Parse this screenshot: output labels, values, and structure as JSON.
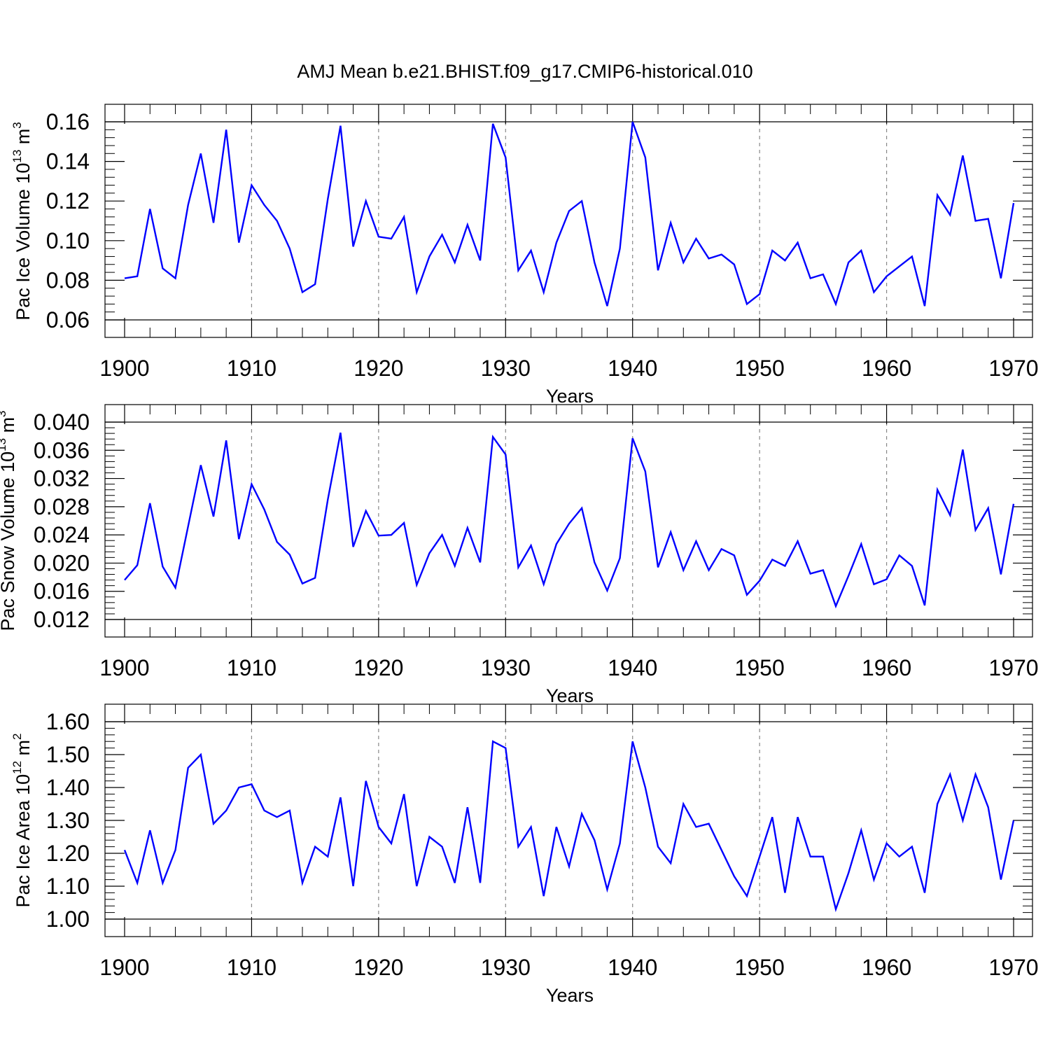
{
  "title": "AMJ Mean b.e21.BHIST.f09_g17.CMIP6-historical.010",
  "colors": {
    "line": "#0000ff",
    "axis": "#000000",
    "grid": "#888888"
  },
  "chart_data": [
    {
      "type": "line",
      "name": "pac-ice-volume",
      "xlabel": "Years",
      "ylabel_main": "Pac Ice Volume 10",
      "ylabel_exp": "13",
      "ylabel_unit": " m",
      "ylabel_unit_exp": "3",
      "xlim": [
        1900,
        1970
      ],
      "ylim": [
        0.06,
        0.16
      ],
      "xticks": [
        1900,
        1910,
        1920,
        1930,
        1940,
        1950,
        1960,
        1970
      ],
      "yticks": [
        0.06,
        0.08,
        0.1,
        0.12,
        0.14,
        0.16
      ],
      "ytick_labels": [
        "0.06",
        "0.08",
        "0.10",
        "0.12",
        "0.14",
        "0.16"
      ],
      "grid": "x dashed",
      "series": [
        {
          "name": "Pac Ice Volume",
          "x_start": 1900,
          "values": [
            0.081,
            0.082,
            0.116,
            0.086,
            0.081,
            0.118,
            0.144,
            0.109,
            0.156,
            0.099,
            0.128,
            0.118,
            0.11,
            0.096,
            0.074,
            0.078,
            0.121,
            0.158,
            0.097,
            0.12,
            0.102,
            0.101,
            0.112,
            0.074,
            0.092,
            0.103,
            0.089,
            0.108,
            0.09,
            0.159,
            0.142,
            0.085,
            0.095,
            0.074,
            0.099,
            0.115,
            0.12,
            0.089,
            0.067,
            0.096,
            0.16,
            0.142,
            0.085,
            0.109,
            0.089,
            0.101,
            0.091,
            0.093,
            0.088,
            0.068,
            0.073,
            0.095,
            0.09,
            0.099,
            0.081,
            0.083,
            0.068,
            0.089,
            0.095,
            0.074,
            0.082,
            0.087,
            0.092,
            0.067,
            0.123,
            0.113,
            0.143,
            0.11,
            0.111,
            0.081,
            0.119
          ]
        }
      ]
    },
    {
      "type": "line",
      "name": "pac-snow-volume",
      "xlabel": "Years",
      "ylabel_main": "Pac Snow Volume 10",
      "ylabel_exp": "13",
      "ylabel_unit": " m",
      "ylabel_unit_exp": "3",
      "xlim": [
        1900,
        1970
      ],
      "ylim": [
        0.012,
        0.04
      ],
      "xticks": [
        1900,
        1910,
        1920,
        1930,
        1940,
        1950,
        1960,
        1970
      ],
      "yticks": [
        0.012,
        0.016,
        0.02,
        0.024,
        0.028,
        0.032,
        0.036,
        0.04
      ],
      "ytick_labels": [
        "0.012",
        "0.016",
        "0.020",
        "0.024",
        "0.028",
        "0.032",
        "0.036",
        "0.040"
      ],
      "grid": "x dashed",
      "series": [
        {
          "name": "Pac Snow Volume",
          "x_start": 1900,
          "values": [
            0.0176,
            0.0197,
            0.0285,
            0.0195,
            0.0165,
            0.0252,
            0.0339,
            0.0266,
            0.0374,
            0.0234,
            0.0312,
            0.0276,
            0.023,
            0.0212,
            0.0171,
            0.0179,
            0.029,
            0.0385,
            0.0223,
            0.0274,
            0.0239,
            0.024,
            0.0257,
            0.0169,
            0.0214,
            0.024,
            0.0196,
            0.025,
            0.0201,
            0.0379,
            0.0354,
            0.0194,
            0.0225,
            0.017,
            0.0227,
            0.0256,
            0.0278,
            0.0201,
            0.0161,
            0.0207,
            0.0377,
            0.033,
            0.0194,
            0.0244,
            0.019,
            0.0231,
            0.019,
            0.022,
            0.0211,
            0.0155,
            0.0175,
            0.0205,
            0.0196,
            0.0231,
            0.0185,
            0.019,
            0.0139,
            0.0182,
            0.0227,
            0.017,
            0.0177,
            0.0211,
            0.0196,
            0.014,
            0.0304,
            0.0268,
            0.0361,
            0.0247,
            0.0278,
            0.0184,
            0.0284
          ]
        }
      ]
    },
    {
      "type": "line",
      "name": "pac-ice-area",
      "xlabel": "Years",
      "ylabel_main": "Pac Ice Area 10",
      "ylabel_exp": "12",
      "ylabel_unit": " m",
      "ylabel_unit_exp": "2",
      "xlim": [
        1900,
        1970
      ],
      "ylim": [
        1.0,
        1.6
      ],
      "xticks": [
        1900,
        1910,
        1920,
        1930,
        1940,
        1950,
        1960,
        1970
      ],
      "yticks": [
        1.0,
        1.1,
        1.2,
        1.3,
        1.4,
        1.5,
        1.6
      ],
      "ytick_labels": [
        "1.00",
        "1.10",
        "1.20",
        "1.30",
        "1.40",
        "1.50",
        "1.60"
      ],
      "grid": "x dashed",
      "series": [
        {
          "name": "Pac Ice Area",
          "x_start": 1900,
          "values": [
            1.21,
            1.11,
            1.27,
            1.11,
            1.21,
            1.46,
            1.5,
            1.29,
            1.33,
            1.4,
            1.41,
            1.33,
            1.31,
            1.33,
            1.11,
            1.22,
            1.19,
            1.37,
            1.1,
            1.42,
            1.28,
            1.23,
            1.38,
            1.1,
            1.25,
            1.22,
            1.11,
            1.34,
            1.11,
            1.54,
            1.52,
            1.22,
            1.28,
            1.07,
            1.28,
            1.16,
            1.32,
            1.24,
            1.09,
            1.23,
            1.54,
            1.4,
            1.22,
            1.17,
            1.35,
            1.28,
            1.29,
            1.21,
            1.13,
            1.07,
            1.19,
            1.31,
            1.08,
            1.31,
            1.19,
            1.19,
            1.03,
            1.14,
            1.27,
            1.12,
            1.23,
            1.19,
            1.22,
            1.08,
            1.35,
            1.44,
            1.3,
            1.44,
            1.34,
            1.12,
            1.3
          ]
        }
      ]
    }
  ]
}
